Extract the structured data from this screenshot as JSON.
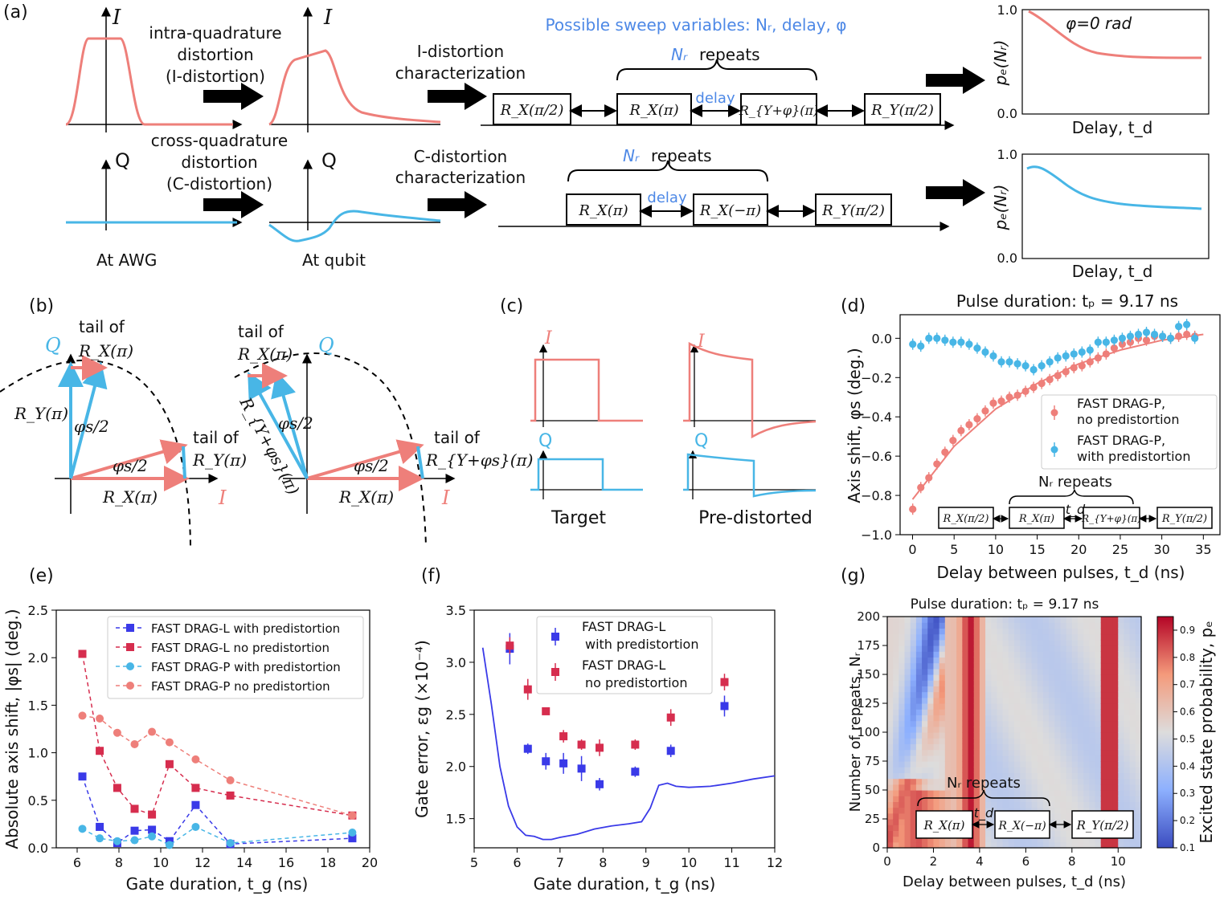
{
  "colors": {
    "pink": "#ee7f7a",
    "red": "#d62d4e",
    "blue": "#3a3ae8",
    "cyan": "#48b6e6",
    "lightblue": "#4d88e6"
  },
  "panel_a": {
    "label": "(a)",
    "sweep_title": "Possible sweep variables: Nᵣ, delay, φ",
    "I": "I",
    "Q": "Q",
    "intra_1": "intra-quadrature",
    "intra_2": "distortion",
    "intra_3": "(I-distortion)",
    "cross_1": "cross-quadrature",
    "cross_2": "distortion",
    "cross_3": "(C-distortion)",
    "ichar_1": "I-distortion",
    "ichar_2": "characterization",
    "cchar_1": "C-distortion",
    "cchar_2": "characterization",
    "at_awg": "At AWG",
    "at_qubit": "At qubit",
    "nr_repeats": "repeats",
    "nr": "Nᵣ",
    "delay": "delay",
    "g_rx_pi2": "R_X(π/2)",
    "g_rx_pi": "R_X(π)",
    "g_ry_phi": "R_{Y+φ}(π)",
    "g_ry_pi2": "R_Y(π/2)",
    "g2_rx_pi": "R_X(π)",
    "g2_rx_mpi": "R_X(−π)",
    "g2_ry_pi2": "R_Y(π/2)",
    "phi_label": "φ=0 rad",
    "ylabel": "pₑ(Nᵣ)",
    "xlabel": "Delay, t_d",
    "ytick_top": "1.0",
    "ytick_bot": "0.0"
  },
  "panel_b": {
    "label": "(b)",
    "tail1_a": "tail of",
    "tail1_b": "R_X(π)",
    "tail2_a": "tail of",
    "tail2_b": "R_Y(π)",
    "tail3_a": "tail of",
    "tail3_b": "R_X(π)",
    "tail4_a": "tail of",
    "tail4_b": "R_{Y+φs}(π)",
    "ry": "R_Y(π)",
    "rx": "R_X(π)",
    "phis2": "φs/2",
    "ryphi": "R_{Y+φs}(π)",
    "Q": "Q",
    "I": "I"
  },
  "panel_c": {
    "label": "(c)",
    "I": "I",
    "Q": "Q",
    "target": "Target",
    "predist": "Pre-distorted"
  },
  "panel_d": {
    "label": "(d)",
    "title": "Pulse duration: tₚ = 9.17 ns",
    "xlabel": "Delay between pulses, t_d (ns)",
    "ylabel": "Axis shift, φs (deg.)",
    "legend1a": "FAST DRAG-P,",
    "legend1b": "no predistortion",
    "legend2a": "FAST DRAG-P,",
    "legend2b": "with predistortion",
    "nr": "Nᵣ repeats",
    "td": "t_d",
    "g1": "R_X(π/2)",
    "g2": "R_X(π)",
    "g3": "R_{Y+φ}(π)",
    "g4": "R_Y(π/2)"
  },
  "panel_e": {
    "label": "(e)",
    "xlabel": "Gate duration, t_g (ns)",
    "ylabel": "Absolute axis shift, |φs| (deg.)"
  },
  "panel_f": {
    "label": "(f)",
    "xlabel": "Gate duration, t_g (ns)",
    "ylabel": "Gate error, εg (×10⁻⁴)",
    "leg1a": "FAST DRAG-L",
    "leg1b": "with predistortion",
    "leg2a": "FAST DRAG-L",
    "leg2b": "no predistortion"
  },
  "panel_g": {
    "label": "(g)",
    "title": "Pulse duration: tₚ = 9.17 ns",
    "xlabel": "Delay between pulses, t_d (ns)",
    "ylabel": "Number of repeats, Nᵣ",
    "cbar": "Excited state probability, pₑ",
    "nr": "Nᵣ repeats",
    "td": "t_d",
    "g1": "R_X(π)",
    "g2": "R_X(−π)",
    "g3": "R_Y(π/2)"
  },
  "chart_data": [
    {
      "type": "scatter",
      "id": "d",
      "title": "Pulse duration: tp = 9.17 ns",
      "xlabel": "Delay between pulses, t_d (ns)",
      "ylabel": "Axis shift (deg.)",
      "xlim": [
        -1.5,
        37
      ],
      "ylim": [
        -1.0,
        0.12
      ],
      "xticks": [
        0,
        5,
        10,
        15,
        20,
        25,
        30,
        35
      ],
      "yticks": [
        0.0,
        -0.2,
        -0.4,
        -0.6,
        -0.8,
        -1.0
      ],
      "ytick_labels": [
        "0.0",
        "−0.2",
        "−0.4",
        "−0.6",
        "−0.8",
        "−1.0"
      ],
      "series": [
        {
          "name": "FAST DRAG-P, no predistortion",
          "color": "#ee7f7a",
          "x": [
            0,
            1,
            2,
            3,
            4,
            5,
            6,
            7,
            8,
            9,
            10,
            11,
            12,
            13,
            14,
            15,
            16,
            17,
            18,
            19,
            20,
            21,
            22,
            23,
            24,
            25,
            26,
            27,
            28,
            29,
            30,
            31,
            32,
            33,
            34,
            35
          ],
          "y": [
            -0.87,
            -0.76,
            -0.71,
            -0.64,
            -0.58,
            -0.52,
            -0.47,
            -0.44,
            -0.41,
            -0.37,
            -0.33,
            -0.32,
            -0.3,
            -0.29,
            -0.27,
            -0.25,
            -0.23,
            -0.21,
            -0.19,
            -0.17,
            -0.15,
            -0.14,
            -0.12,
            -0.1,
            -0.08,
            -0.05,
            -0.03,
            -0.02,
            0.0,
            -0.01,
            0.01,
            0.01,
            0.0,
            0.01,
            0.02,
            0.01
          ]
        },
        {
          "name": "FAST DRAG-P, with predistortion",
          "color": "#48b6e6",
          "x": [
            0,
            1,
            2,
            3,
            4,
            5,
            6,
            7,
            8,
            9,
            10,
            11,
            12,
            13,
            14,
            15,
            16,
            17,
            18,
            19,
            20,
            21,
            22,
            23,
            24,
            25,
            26,
            27,
            28,
            29,
            30,
            31,
            32,
            33,
            34,
            35
          ],
          "y": [
            -0.03,
            -0.04,
            0.0,
            0.0,
            -0.01,
            -0.02,
            -0.02,
            -0.03,
            -0.05,
            -0.07,
            -0.09,
            -0.12,
            -0.12,
            -0.13,
            -0.14,
            -0.16,
            -0.14,
            -0.12,
            -0.1,
            -0.09,
            -0.08,
            -0.07,
            -0.06,
            -0.02,
            -0.02,
            -0.01,
            0.0,
            0.01,
            0.02,
            0.03,
            0.02,
            0.01,
            0.0,
            0.06,
            0.07,
            0.0
          ]
        }
      ],
      "fit": {
        "name": "exponential fit",
        "x": [
          0,
          5,
          10,
          15,
          20,
          25,
          30,
          35
        ],
        "y": [
          -0.82,
          -0.55,
          -0.36,
          -0.23,
          -0.13,
          -0.06,
          -0.01,
          0.02
        ]
      }
    },
    {
      "type": "line",
      "id": "e",
      "xlabel": "Gate duration, t_g (ns)",
      "ylabel": "Absolute axis shift, |φs| (deg.)",
      "xlim": [
        5,
        20
      ],
      "ylim": [
        0,
        2.5
      ],
      "xticks": [
        6,
        8,
        10,
        12,
        14,
        16,
        18,
        20
      ],
      "yticks": [
        0.0,
        0.5,
        1.0,
        1.5,
        2.0,
        2.5
      ],
      "series": [
        {
          "name": "FAST DRAG-L with predistortion",
          "color": "#3a3ae8",
          "marker": "square",
          "x": [
            6.25,
            7.08,
            7.92,
            8.75,
            9.58,
            10.42,
            11.67,
            13.33,
            19.17
          ],
          "y": [
            0.75,
            0.22,
            0.05,
            0.18,
            0.19,
            0.07,
            0.45,
            0.04,
            0.1
          ]
        },
        {
          "name": "FAST DRAG-L no predistortion",
          "color": "#d62d4e",
          "marker": "square",
          "x": [
            6.25,
            7.08,
            7.92,
            8.75,
            9.58,
            10.42,
            11.67,
            13.33,
            19.17
          ],
          "y": [
            2.04,
            1.02,
            0.63,
            0.41,
            0.35,
            0.88,
            0.63,
            0.55,
            0.34
          ]
        },
        {
          "name": "FAST DRAG-P with predistortion",
          "color": "#48b6e6",
          "marker": "circle",
          "x": [
            6.25,
            7.08,
            7.92,
            8.75,
            9.58,
            10.42,
            11.67,
            13.33,
            19.17
          ],
          "y": [
            0.2,
            0.1,
            0.07,
            0.08,
            0.12,
            0.03,
            0.22,
            0.05,
            0.16
          ]
        },
        {
          "name": "FAST DRAG-P no predistortion",
          "color": "#ee7f7a",
          "marker": "circle",
          "x": [
            6.25,
            7.08,
            7.92,
            8.75,
            9.58,
            10.42,
            11.67,
            13.33,
            19.17
          ],
          "y": [
            1.39,
            1.36,
            1.21,
            1.09,
            1.22,
            1.11,
            0.93,
            0.71,
            0.34
          ]
        }
      ]
    },
    {
      "type": "scatter",
      "id": "f",
      "xlabel": "Gate duration, t_g (ns)",
      "ylabel": "Gate error (×10⁻⁴)",
      "xlim": [
        5,
        12
      ],
      "ylim": [
        1.22,
        3.5
      ],
      "xticks": [
        5,
        6,
        7,
        8,
        9,
        10,
        11,
        12
      ],
      "yticks": [
        1.5,
        2.0,
        2.5,
        3.0,
        3.5
      ],
      "series": [
        {
          "name": "FAST DRAG-L with predistortion",
          "color": "#3a3ae8",
          "x": [
            5.83,
            6.25,
            6.67,
            7.08,
            7.5,
            7.92,
            8.75,
            9.58,
            10.83
          ],
          "y": [
            3.13,
            2.17,
            2.05,
            2.03,
            1.98,
            1.83,
            1.95,
            2.15,
            2.58
          ],
          "err": [
            0.15,
            0.05,
            0.08,
            0.1,
            0.12,
            0.06,
            0.05,
            0.06,
            0.1
          ]
        },
        {
          "name": "FAST DRAG-L no predistortion",
          "color": "#d62d4e",
          "x": [
            5.83,
            6.25,
            6.67,
            7.08,
            7.5,
            7.92,
            8.75,
            9.58,
            10.83
          ],
          "y": [
            3.16,
            2.74,
            2.53,
            2.29,
            2.21,
            2.18,
            2.21,
            2.47,
            2.81
          ],
          "err": [
            0.08,
            0.1,
            0.03,
            0.06,
            0.05,
            0.08,
            0.05,
            0.08,
            0.08
          ]
        },
        {
          "name": "FAST DRAG-L with predistortion (upper)",
          "color": "#3a3ae8",
          "x": [
            6.67
          ],
          "y": [
            3.23
          ],
          "err": [
            0.05
          ]
        },
        {
          "name": "FAST DRAG-L no predistortion (upper)",
          "color": "#d62d4e",
          "x": [
            6.67
          ],
          "y": [
            2.87
          ],
          "err": [
            0.05
          ]
        }
      ],
      "line": {
        "color": "#3a3ae8",
        "x": [
          5.2,
          5.4,
          5.6,
          5.8,
          6.0,
          6.2,
          6.4,
          6.6,
          6.8,
          7.0,
          7.4,
          7.8,
          8.2,
          8.6,
          8.9,
          9.1,
          9.3,
          9.5,
          9.7,
          10.0,
          10.5,
          11.0,
          11.5,
          12.0
        ],
        "y": [
          3.14,
          2.6,
          2.0,
          1.62,
          1.42,
          1.34,
          1.33,
          1.3,
          1.3,
          1.32,
          1.35,
          1.4,
          1.43,
          1.45,
          1.47,
          1.6,
          1.82,
          1.84,
          1.81,
          1.8,
          1.81,
          1.84,
          1.88,
          1.91
        ]
      }
    },
    {
      "type": "heatmap",
      "id": "g",
      "title": "Pulse duration: tp = 9.17 ns",
      "xlabel": "Delay between pulses, t_d (ns)",
      "ylabel": "Number of repeats, Nr",
      "xlim": [
        0,
        11
      ],
      "ylim": [
        0,
        200
      ],
      "xticks": [
        0,
        2,
        4,
        6,
        8,
        10
      ],
      "yticks": [
        0,
        25,
        50,
        75,
        100,
        125,
        150,
        175,
        200
      ],
      "colorbar": {
        "label": "Excited state probability, pe",
        "min": 0.1,
        "max": 0.95,
        "ticks": [
          0.1,
          0.2,
          0.3,
          0.4,
          0.5,
          0.6,
          0.7,
          0.8,
          0.9
        ]
      }
    }
  ]
}
